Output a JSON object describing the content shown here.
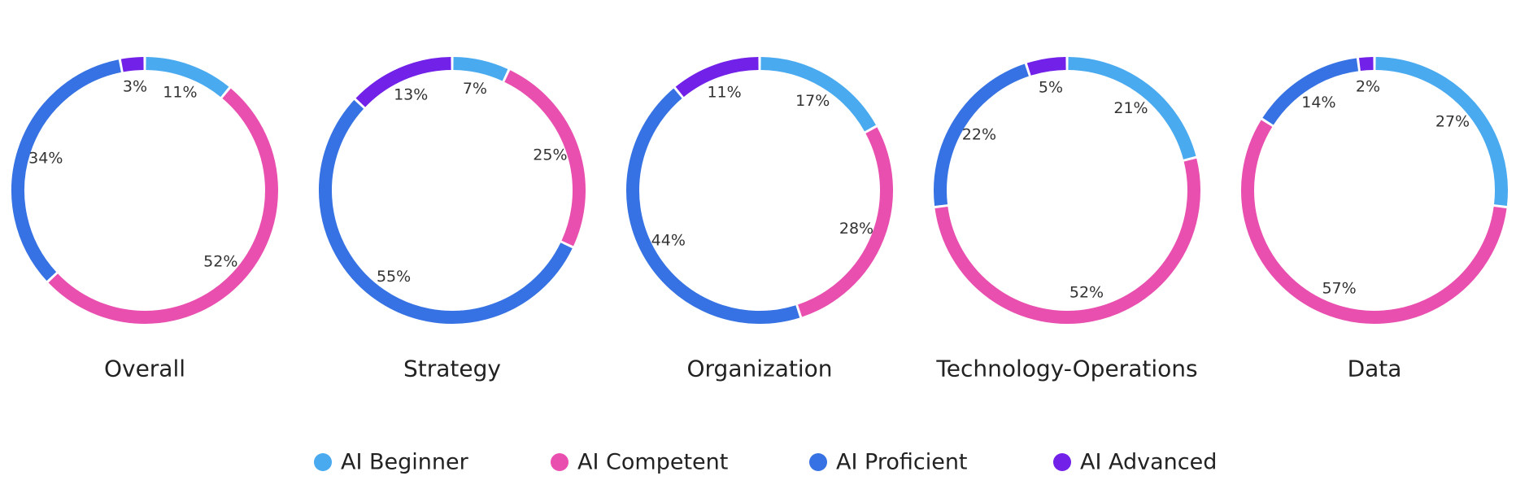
{
  "chart_data": [
    {
      "type": "pie",
      "title": "Overall",
      "categories": [
        "AI Beginner",
        "AI Competent",
        "AI Proficient",
        "AI Advanced"
      ],
      "values": [
        11,
        52,
        34,
        3
      ],
      "labels": [
        "11%",
        "52%",
        "34%",
        "3%"
      ]
    },
    {
      "type": "pie",
      "title": "Strategy",
      "categories": [
        "AI Beginner",
        "AI Competent",
        "AI Proficient",
        "AI Advanced"
      ],
      "values": [
        7,
        25,
        55,
        13
      ],
      "labels": [
        "7%",
        "25%",
        "55%",
        "13%"
      ]
    },
    {
      "type": "pie",
      "title": "Organization",
      "categories": [
        "AI Beginner",
        "AI Competent",
        "AI Proficient",
        "AI Advanced"
      ],
      "values": [
        17,
        28,
        44,
        11
      ],
      "labels": [
        "17%",
        "28%",
        "44%",
        "11%"
      ]
    },
    {
      "type": "pie",
      "title": "Technology-Operations",
      "categories": [
        "AI Beginner",
        "AI Competent",
        "AI Proficient",
        "AI Advanced"
      ],
      "values": [
        21,
        52,
        22,
        5
      ],
      "labels": [
        "21%",
        "52%",
        "22%",
        "5%"
      ]
    },
    {
      "type": "pie",
      "title": "Data",
      "categories": [
        "AI Beginner",
        "AI Competent",
        "AI Proficient",
        "AI Advanced"
      ],
      "values": [
        27,
        57,
        14,
        2
      ],
      "labels": [
        "27%",
        "57%",
        "14%",
        "2%"
      ]
    }
  ],
  "legend": {
    "placement": "bottom",
    "items": [
      {
        "label": "AI Beginner",
        "color": "#4aaaf0"
      },
      {
        "label": "AI Competent",
        "color": "#e94fae"
      },
      {
        "label": "AI Proficient",
        "color": "#3672e3"
      },
      {
        "label": "AI Advanced",
        "color": "#7121e8"
      }
    ]
  }
}
